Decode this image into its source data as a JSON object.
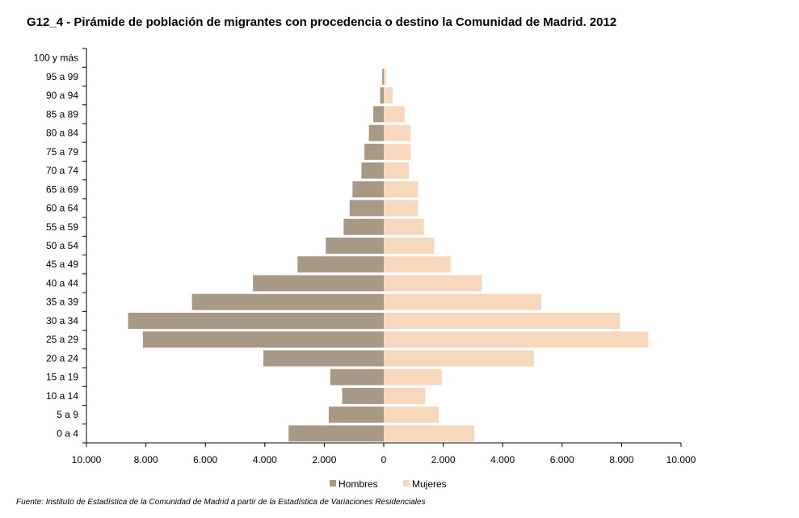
{
  "title": "G12_4 - Pirámide de población de migrantes con procedencia o destino la Comunidad de Madrid. 2012",
  "source": "Fuente: Instituto de Estadística de la Comunidad de Madrid a partir de la Estadística de Variaciones Residenciales",
  "colors": {
    "hombres": "#a89886",
    "mujeres": "#f8d8bc"
  },
  "chart_data": {
    "type": "bar",
    "orientation": "horizontal-pyramid",
    "title": "G12_4 - Pirámide de población de migrantes con procedencia o destino la Comunidad de Madrid. 2012",
    "categories": [
      "0 a 4",
      "5 a 9",
      "10 a 14",
      "15 a 19",
      "20 a 24",
      "25 a 29",
      "30 a 34",
      "35 a 39",
      "40 a 44",
      "45 a 49",
      "50 a 54",
      "55 a 59",
      "60 a 64",
      "65 a 69",
      "70 a 74",
      "75 a 79",
      "80 a 84",
      "85 a 89",
      "90 a 94",
      "95 a 99",
      "100 y más"
    ],
    "series": [
      {
        "name": "Hombres",
        "values": [
          3200,
          1850,
          1400,
          1800,
          4050,
          8100,
          8600,
          6450,
          4400,
          2900,
          1950,
          1350,
          1150,
          1050,
          750,
          650,
          500,
          350,
          120,
          50,
          0
        ]
      },
      {
        "name": "Mujeres",
        "values": [
          3050,
          1850,
          1400,
          1950,
          5050,
          8900,
          7950,
          5300,
          3300,
          2250,
          1700,
          1350,
          1150,
          1150,
          850,
          900,
          900,
          700,
          300,
          80,
          0
        ]
      }
    ],
    "xlim": [
      -10000,
      10000
    ],
    "xticks": [
      -10000,
      -8000,
      -6000,
      -4000,
      -2000,
      0,
      2000,
      4000,
      6000,
      8000,
      10000
    ],
    "xtick_labels": [
      "10.000",
      "8.000",
      "6.000",
      "4.000",
      "2.000",
      "0",
      "2.000",
      "4.000",
      "6.000",
      "8.000",
      "10.000"
    ],
    "legend": {
      "position": "bottom",
      "entries": [
        "Hombres",
        "Mujeres"
      ]
    },
    "grid": false
  }
}
